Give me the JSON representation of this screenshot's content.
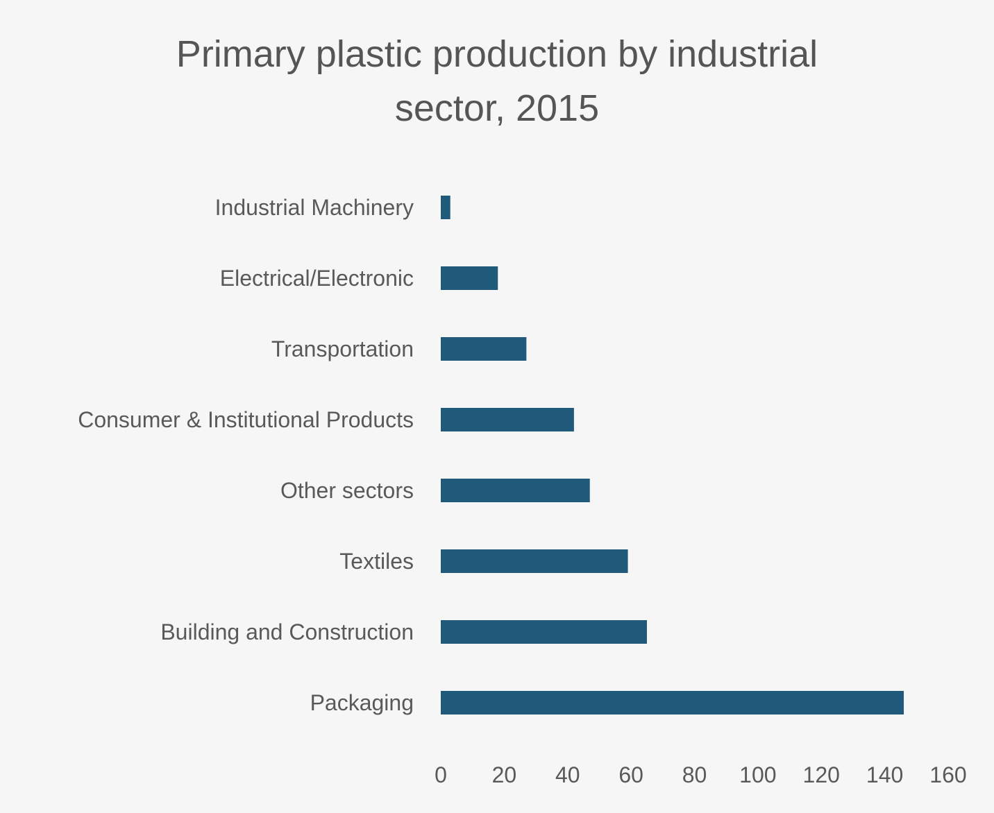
{
  "chart_data": {
    "type": "bar",
    "orientation": "horizontal",
    "title": "Primary plastic production by industrial sector, 2015",
    "title_lines": [
      "Primary plastic production by industrial",
      "sector, 2015"
    ],
    "categories": [
      "Packaging",
      "Building and Construction",
      "Textiles",
      "Other sectors",
      "Consumer & Institutional Products",
      "Transportation",
      "Electrical/Electronic",
      "Industrial Machinery"
    ],
    "values": [
      146,
      65,
      59,
      47,
      42,
      27,
      18,
      3
    ],
    "xlim": [
      0,
      160
    ],
    "xticks": [
      0,
      20,
      40,
      60,
      80,
      100,
      120,
      140,
      160
    ],
    "xlabel": "",
    "ylabel": "",
    "grid": false,
    "legend": "none",
    "bar_color": "#1f5a7a",
    "background_color": "#f6f6f6",
    "text_color": "#595959"
  }
}
